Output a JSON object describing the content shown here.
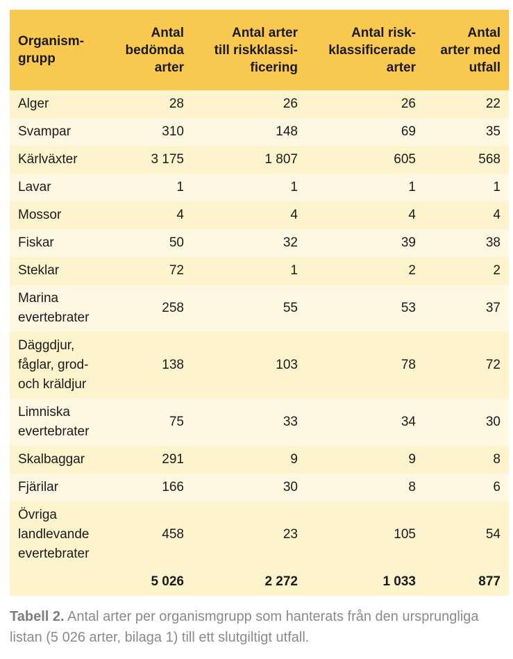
{
  "table": {
    "headers": [
      {
        "lines": [
          "Organism-",
          "grupp"
        ],
        "align": "left"
      },
      {
        "lines": [
          "Antal",
          "bedömda",
          "arter"
        ],
        "align": "right"
      },
      {
        "lines": [
          "Antal arter",
          "till riskklassi-",
          "ficering"
        ],
        "align": "right"
      },
      {
        "lines": [
          "Antal risk-",
          "klassificerade",
          "arter"
        ],
        "align": "right"
      },
      {
        "lines": [
          "Antal",
          "arter med",
          "utfall"
        ],
        "align": "right"
      }
    ],
    "rows": [
      {
        "name": [
          "Alger"
        ],
        "values": [
          "28",
          "26",
          "26",
          "22"
        ]
      },
      {
        "name": [
          "Svampar"
        ],
        "values": [
          "310",
          "148",
          "69",
          "35"
        ]
      },
      {
        "name": [
          "Kärlväxter"
        ],
        "values": [
          "3 175",
          "1 807",
          "605",
          "568"
        ]
      },
      {
        "name": [
          "Lavar"
        ],
        "values": [
          "1",
          "1",
          "1",
          "1"
        ]
      },
      {
        "name": [
          "Mossor"
        ],
        "values": [
          "4",
          "4",
          "4",
          "4"
        ]
      },
      {
        "name": [
          "Fiskar"
        ],
        "values": [
          "50",
          "32",
          "39",
          "38"
        ]
      },
      {
        "name": [
          "Steklar"
        ],
        "values": [
          "72",
          "1",
          "2",
          "2"
        ]
      },
      {
        "name": [
          "Marina",
          "evertebrater"
        ],
        "values": [
          "258",
          "55",
          "53",
          "37"
        ]
      },
      {
        "name": [
          "Däggdjur,",
          "fåglar, grod-",
          "och kräldjur"
        ],
        "values": [
          "138",
          "103",
          "78",
          "72"
        ]
      },
      {
        "name": [
          "Limniska",
          "evertebrater"
        ],
        "values": [
          "75",
          "33",
          "34",
          "30"
        ]
      },
      {
        "name": [
          "Skalbaggar"
        ],
        "values": [
          "291",
          "9",
          "9",
          "8"
        ]
      },
      {
        "name": [
          "Fjärilar"
        ],
        "values": [
          "166",
          "30",
          "8",
          "6"
        ]
      },
      {
        "name": [
          "Övriga",
          "landlevande",
          "evertebrater"
        ],
        "values": [
          "458",
          "23",
          "105",
          "54"
        ]
      }
    ],
    "totals": [
      "",
      "5 026",
      "2 272",
      "1 033",
      "877"
    ]
  },
  "caption": {
    "label": "Tabell 2.",
    "text": " Antal arter per organismgrupp som hanterats från den ursprungliga listan (5 026 arter, bilaga 1) till ett slutgiltigt utfall."
  },
  "colors": {
    "header_bg": "#f9c84f",
    "row_odd_bg": "#fdf3cc",
    "row_even_bg": "#fef8e3",
    "caption_text": "#8a8a8a"
  }
}
